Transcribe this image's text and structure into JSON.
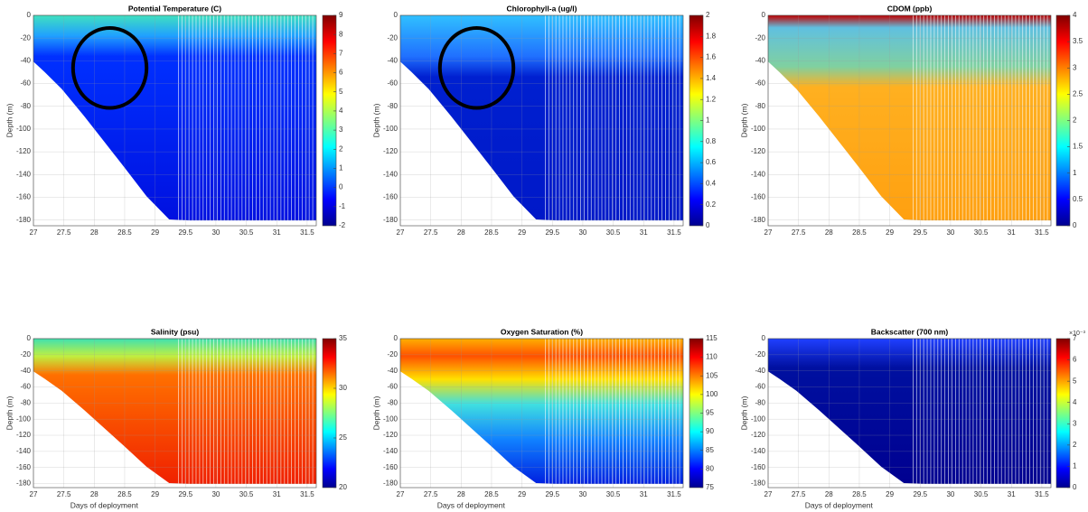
{
  "chart_data": [
    {
      "type": "heatmap",
      "title": "Potential Temperature (C)",
      "ylabel": "Depth (m)",
      "xlim": [
        27,
        31.65
      ],
      "xticks": [
        27,
        27.5,
        28,
        28.5,
        29,
        29.5,
        30,
        30.5,
        31,
        31.5
      ],
      "ylim": [
        -185,
        0
      ],
      "yticks": [
        0,
        -20,
        -40,
        -60,
        -80,
        -100,
        -120,
        -140,
        -160,
        -180
      ],
      "clim": [
        -2,
        9
      ],
      "cticks": [
        -2,
        -1,
        0,
        1,
        2,
        3,
        4,
        5,
        6,
        7,
        8,
        9
      ],
      "grid": true
    },
    {
      "type": "heatmap",
      "title": "Chlorophyll-a (ug/l)",
      "ylabel": "Depth (m)",
      "xlim": [
        27,
        31.65
      ],
      "xticks": [
        27,
        27.5,
        28,
        28.5,
        29,
        29.5,
        30,
        30.5,
        31,
        31.5
      ],
      "ylim": [
        -185,
        0
      ],
      "yticks": [
        0,
        -20,
        -40,
        -60,
        -80,
        -100,
        -120,
        -140,
        -160,
        -180
      ],
      "clim": [
        0,
        2
      ],
      "cticks": [
        0,
        0.2,
        0.4,
        0.6,
        0.8,
        1,
        1.2,
        1.4,
        1.6,
        1.8,
        2
      ],
      "grid": true
    },
    {
      "type": "heatmap",
      "title": "CDOM (ppb)",
      "ylabel": "Depth (m)",
      "xlim": [
        27,
        31.65
      ],
      "xticks": [
        27,
        27.5,
        28,
        28.5,
        29,
        29.5,
        30,
        30.5,
        31,
        31.5
      ],
      "ylim": [
        -185,
        0
      ],
      "yticks": [
        0,
        -20,
        -40,
        -60,
        -80,
        -100,
        -120,
        -140,
        -160,
        -180
      ],
      "clim": [
        0,
        4
      ],
      "cticks": [
        0,
        0.5,
        1,
        1.5,
        2,
        2.5,
        3,
        3.5,
        4
      ],
      "grid": true
    },
    {
      "type": "heatmap",
      "title": "Salinity (psu)",
      "ylabel": "Depth (m)",
      "xlabel": "Days of deployment",
      "xlim": [
        27,
        31.65
      ],
      "xticks": [
        27,
        27.5,
        28,
        28.5,
        29,
        29.5,
        30,
        30.5,
        31,
        31.5
      ],
      "ylim": [
        -185,
        0
      ],
      "yticks": [
        0,
        -20,
        -40,
        -60,
        -80,
        -100,
        -120,
        -140,
        -160,
        -180
      ],
      "clim": [
        20,
        35
      ],
      "cticks": [
        20,
        25,
        30,
        35
      ],
      "grid": true
    },
    {
      "type": "heatmap",
      "title": "Oxygen Saturation (%)",
      "ylabel": "Depth (m)",
      "xlabel": "Days of deployment",
      "xlim": [
        27,
        31.65
      ],
      "xticks": [
        27,
        27.5,
        28,
        28.5,
        29,
        29.5,
        30,
        30.5,
        31,
        31.5
      ],
      "ylim": [
        -185,
        0
      ],
      "yticks": [
        0,
        -20,
        -40,
        -60,
        -80,
        -100,
        -120,
        -140,
        -160,
        -180
      ],
      "clim": [
        75,
        115
      ],
      "cticks": [
        75,
        80,
        85,
        90,
        95,
        100,
        105,
        110,
        115
      ],
      "grid": true
    },
    {
      "type": "heatmap",
      "title": "Backscatter (700 nm)",
      "ylabel": "Depth (m)",
      "xlabel": "Days of deployment",
      "xlim": [
        27,
        31.65
      ],
      "xticks": [
        27,
        27.5,
        28,
        28.5,
        29,
        29.5,
        30,
        30.5,
        31,
        31.5
      ],
      "ylim": [
        -185,
        0
      ],
      "yticks": [
        0,
        -20,
        -40,
        -60,
        -80,
        -100,
        -120,
        -140,
        -160,
        -180
      ],
      "clim": [
        0,
        7
      ],
      "cticks": [
        0,
        1,
        2,
        3,
        4,
        5,
        6,
        7
      ],
      "colorbar_exponent": "×10⁻³",
      "grid": true
    }
  ]
}
